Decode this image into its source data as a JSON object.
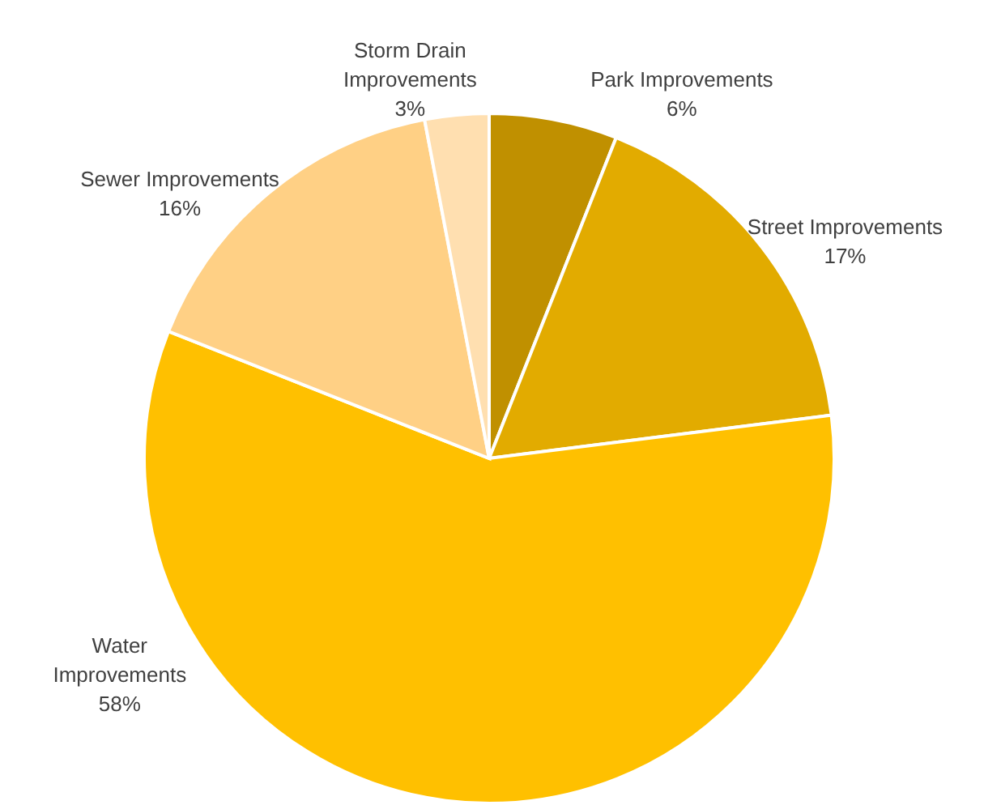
{
  "chart_data": {
    "type": "pie",
    "categories": [
      "Park Improvements",
      "Street Improvements",
      "Water Improvements",
      "Sewer Improvements",
      "Storm Drain Improvements"
    ],
    "values": [
      6,
      17,
      58,
      16,
      3
    ],
    "colors": [
      "#c09000",
      "#e2ab00",
      "#ffc000",
      "#ffd085",
      "#ffdfb0"
    ],
    "value_labels": [
      "6%",
      "17%",
      "58%",
      "16%",
      "3%"
    ]
  }
}
